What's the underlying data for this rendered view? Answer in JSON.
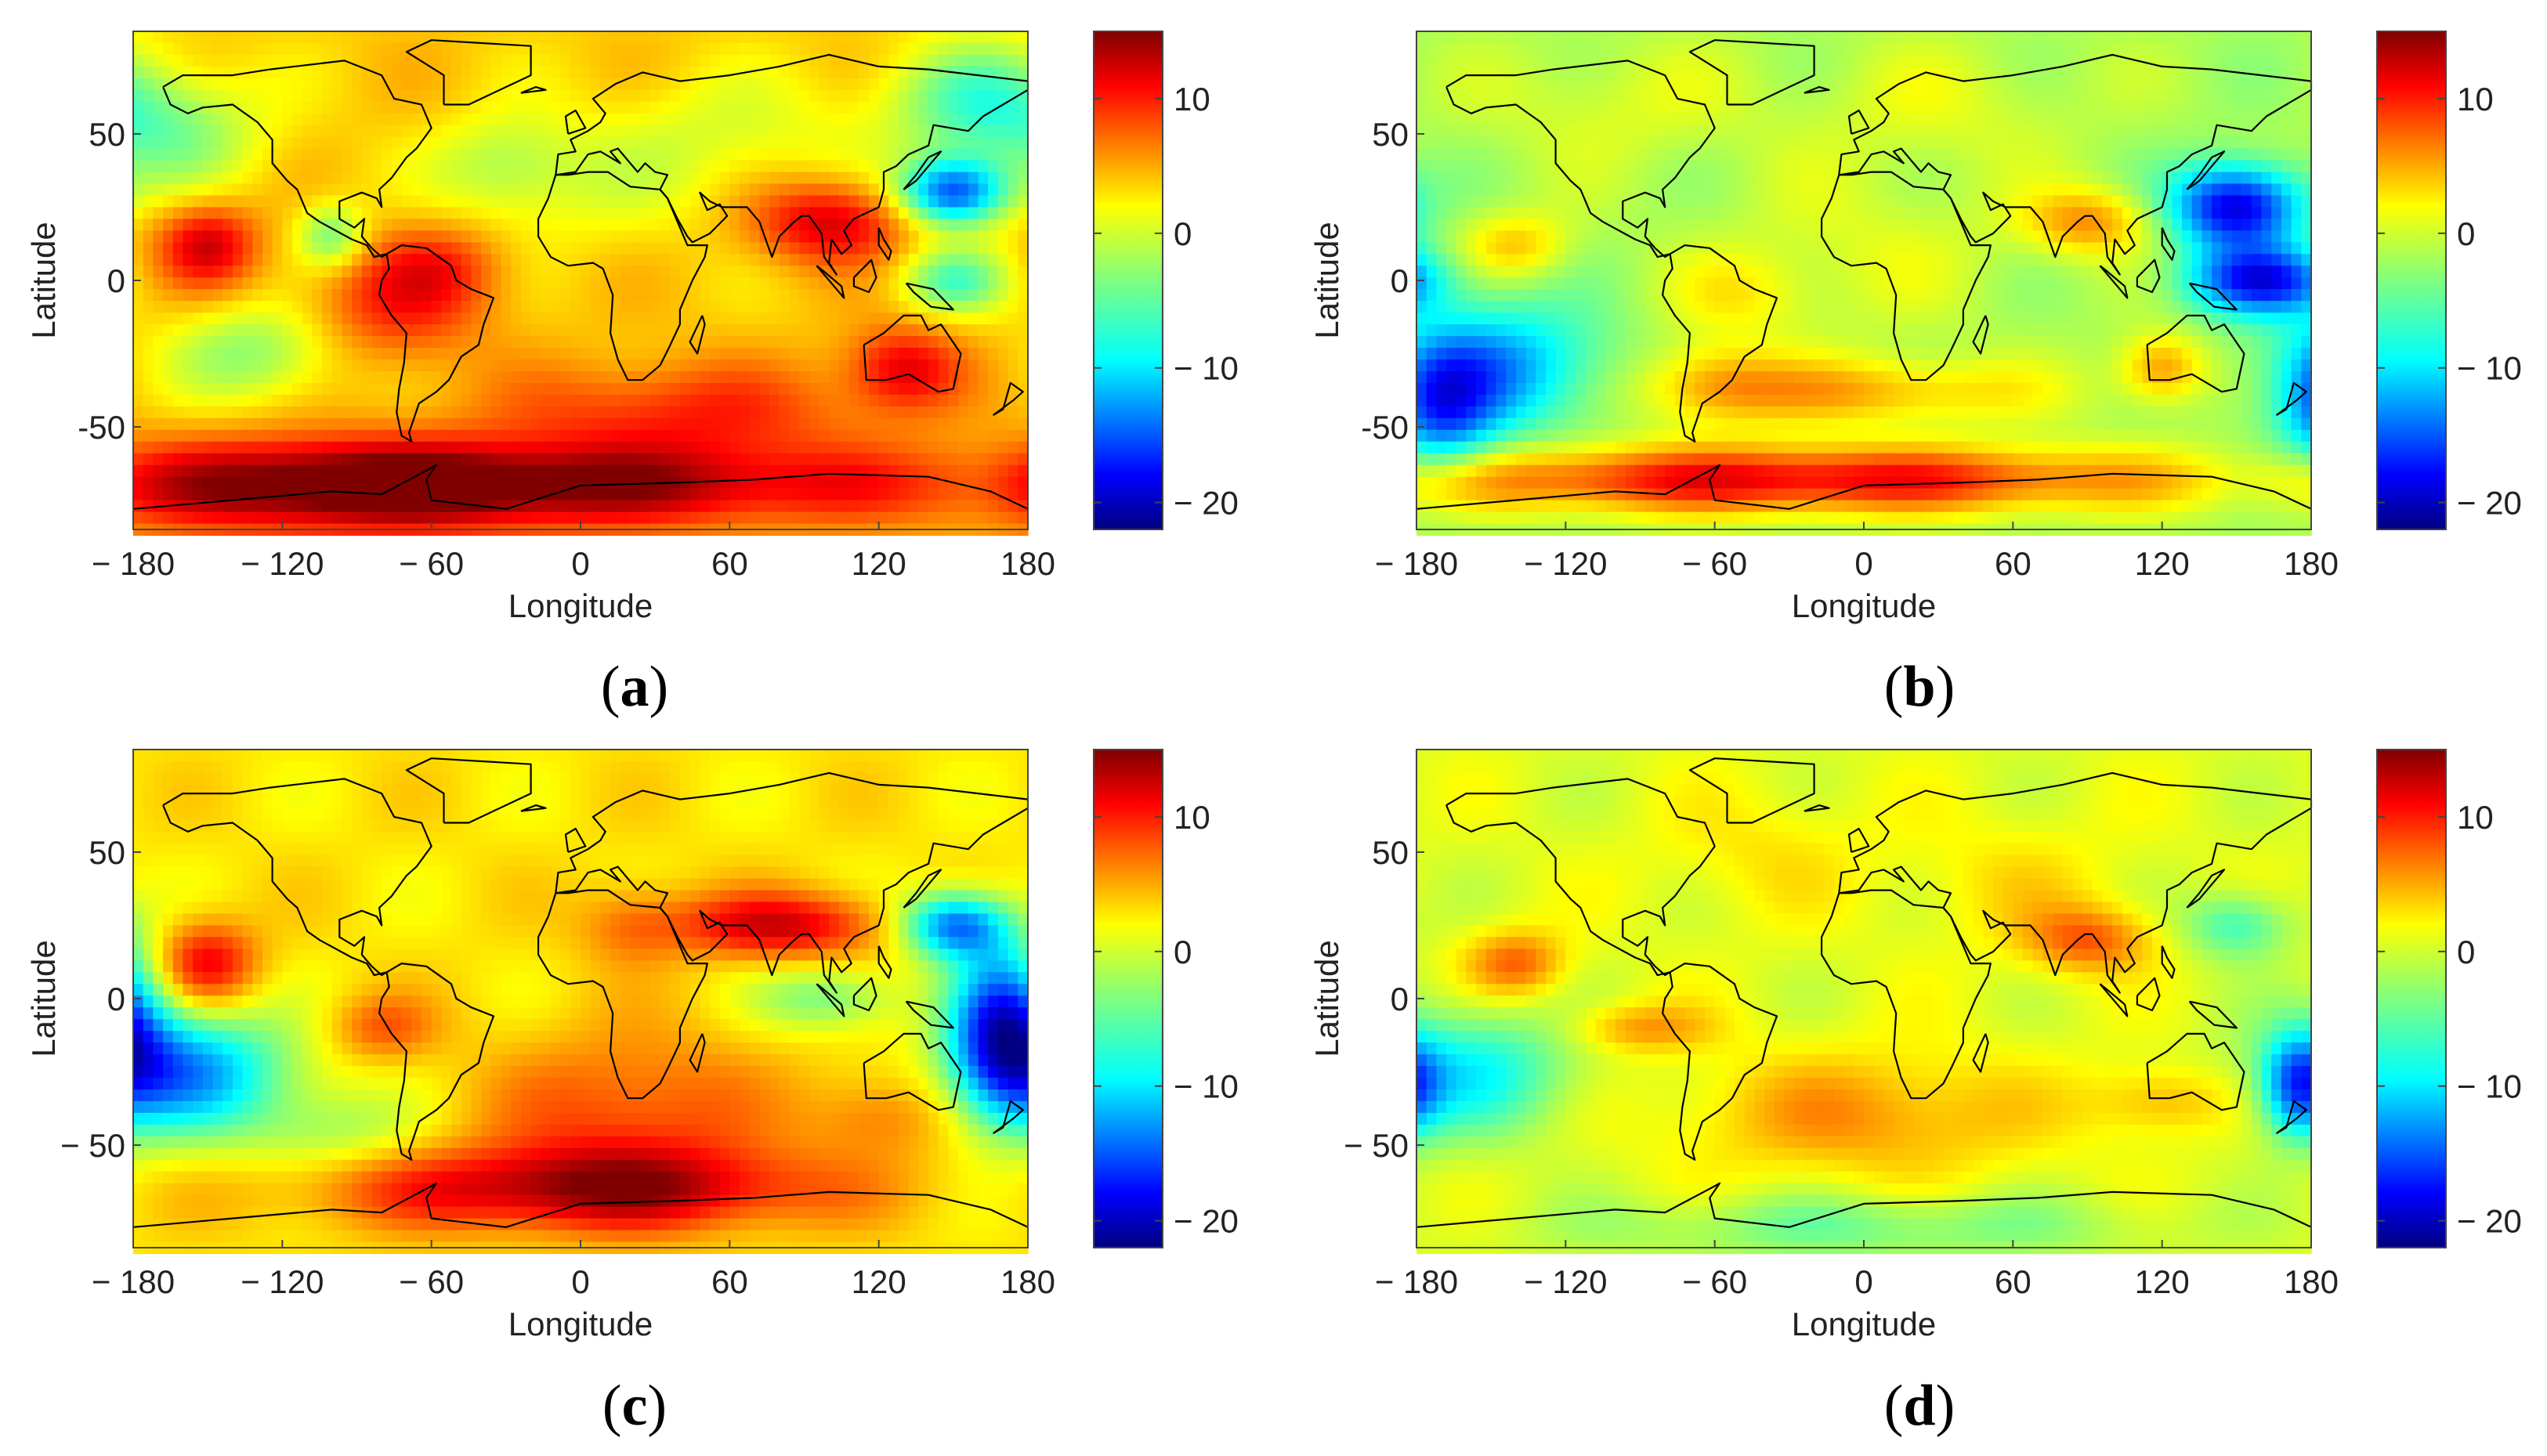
{
  "figure": {
    "colormap": "jet",
    "colorbar": {
      "range": [
        -22,
        15
      ],
      "ticks": [
        10,
        0,
        -10,
        -20
      ],
      "tick_labels": [
        "10",
        "0",
        "− 10",
        "− 20"
      ]
    },
    "x_ticks": [
      -180,
      -120,
      -60,
      0,
      60,
      120,
      180
    ],
    "x_tick_labels": [
      "− 180",
      "− 120",
      "− 60",
      "0",
      "60",
      "120",
      "180"
    ],
    "y_ticks": [
      50,
      0,
      -50
    ],
    "xlabel": "Longitude",
    "ylabel": "Latitude",
    "lon_range": [
      -180,
      180
    ],
    "lat_range": [
      -85,
      85
    ]
  },
  "panels": [
    {
      "id": "a",
      "caption_open": "(",
      "caption_letter": "a",
      "caption_close": ")",
      "y_tick_labels": [
        "50",
        "0",
        "-50"
      ],
      "base_value": 3,
      "anomalies": [
        {
          "lon": -150,
          "lat": 12,
          "value": 9,
          "rlon": 14,
          "rlat": 10
        },
        {
          "lon": -75,
          "lat": -8,
          "value": 6,
          "rlon": 25,
          "rlat": 15
        },
        {
          "lon": -55,
          "lat": 5,
          "value": 4,
          "rlon": 18,
          "rlat": 10
        },
        {
          "lon": -130,
          "lat": -25,
          "value": -6,
          "rlon": 25,
          "rlat": 12
        },
        {
          "lon": -160,
          "lat": 50,
          "value": -5,
          "rlon": 25,
          "rlat": 15
        },
        {
          "lon": -100,
          "lat": 15,
          "value": -7,
          "rlon": 10,
          "rlat": 8
        },
        {
          "lon": 100,
          "lat": 20,
          "value": 9,
          "rlon": 22,
          "rlat": 10
        },
        {
          "lon": 130,
          "lat": -30,
          "value": 8,
          "rlon": 16,
          "rlat": 10
        },
        {
          "lon": 150,
          "lat": 30,
          "value": -17,
          "rlon": 15,
          "rlat": 8
        },
        {
          "lon": 160,
          "lat": 60,
          "value": -8,
          "rlon": 25,
          "rlat": 15
        },
        {
          "lon": 150,
          "lat": 0,
          "value": -8,
          "rlon": 15,
          "rlat": 8
        },
        {
          "lon": 40,
          "lat": -45,
          "value": 6,
          "rlon": 50,
          "rlat": 12
        },
        {
          "lon": -20,
          "lat": -70,
          "value": 11,
          "rlon": 120,
          "rlat": 10
        },
        {
          "lon": -100,
          "lat": -70,
          "value": 7,
          "rlon": 60,
          "rlat": 12
        },
        {
          "lon": 0,
          "lat": 30,
          "value": -2,
          "rlon": 40,
          "rlat": 15
        },
        {
          "lon": -30,
          "lat": 40,
          "value": -4,
          "rlon": 20,
          "rlat": 12
        },
        {
          "lon": 60,
          "lat": 50,
          "value": -3,
          "rlon": 40,
          "rlat": 15
        }
      ]
    },
    {
      "id": "b",
      "caption_open": "(",
      "caption_letter": "b",
      "caption_close": ")",
      "y_tick_labels": [
        "50",
        "0",
        "-50"
      ],
      "base_value": -2,
      "anomalies": [
        {
          "lon": -140,
          "lat": 12,
          "value": 5,
          "rlon": 15,
          "rlat": 8
        },
        {
          "lon": -150,
          "lat": -30,
          "value": -10,
          "rlon": 30,
          "rlat": 15
        },
        {
          "lon": -170,
          "lat": -45,
          "value": -10,
          "rlon": 15,
          "rlat": 15
        },
        {
          "lon": -50,
          "lat": -5,
          "value": 3,
          "rlon": 20,
          "rlat": 10
        },
        {
          "lon": -60,
          "lat": -35,
          "value": 5,
          "rlon": 20,
          "rlat": 10
        },
        {
          "lon": 90,
          "lat": 20,
          "value": 7,
          "rlon": 18,
          "rlat": 8
        },
        {
          "lon": 150,
          "lat": 25,
          "value": -17,
          "rlon": 18,
          "rlat": 10
        },
        {
          "lon": 160,
          "lat": 0,
          "value": -15,
          "rlon": 20,
          "rlat": 8
        },
        {
          "lon": 120,
          "lat": -30,
          "value": 7,
          "rlon": 12,
          "rlat": 8
        },
        {
          "lon": 0,
          "lat": -38,
          "value": 6,
          "rlon": 50,
          "rlat": 8
        },
        {
          "lon": -30,
          "lat": -68,
          "value": 13,
          "rlon": 110,
          "rlat": 8
        },
        {
          "lon": 0,
          "lat": 10,
          "value": 2,
          "rlon": 40,
          "rlat": 20
        },
        {
          "lon": -100,
          "lat": 60,
          "value": 2,
          "rlon": 40,
          "rlat": 15
        },
        {
          "lon": 30,
          "lat": 60,
          "value": 2,
          "rlon": 40,
          "rlat": 15
        }
      ]
    },
    {
      "id": "c",
      "caption_open": "(",
      "caption_letter": "c",
      "caption_close": ")",
      "y_tick_labels": [
        "50",
        "0",
        "− 50"
      ],
      "base_value": 2,
      "anomalies": [
        {
          "lon": -150,
          "lat": 12,
          "value": 9,
          "rlon": 14,
          "rlat": 10
        },
        {
          "lon": -160,
          "lat": -25,
          "value": -14,
          "rlon": 30,
          "rlat": 15
        },
        {
          "lon": -100,
          "lat": -45,
          "value": -4,
          "rlon": 25,
          "rlat": 10
        },
        {
          "lon": -80,
          "lat": -10,
          "value": 5,
          "rlon": 15,
          "rlat": 8
        },
        {
          "lon": 80,
          "lat": 25,
          "value": 10,
          "rlon": 30,
          "rlat": 8
        },
        {
          "lon": 20,
          "lat": 25,
          "value": 4,
          "rlon": 15,
          "rlat": 10
        },
        {
          "lon": 150,
          "lat": 25,
          "value": -15,
          "rlon": 15,
          "rlat": 8
        },
        {
          "lon": 170,
          "lat": -10,
          "value": -18,
          "rlon": 15,
          "rlat": 20
        },
        {
          "lon": 100,
          "lat": 0,
          "value": -6,
          "rlon": 20,
          "rlat": 8
        },
        {
          "lon": 20,
          "lat": -40,
          "value": 6,
          "rlon": 40,
          "rlat": 20
        },
        {
          "lon": 0,
          "lat": -65,
          "value": 11,
          "rlon": 70,
          "rlat": 10
        },
        {
          "lon": 120,
          "lat": -40,
          "value": 4,
          "rlon": 20,
          "rlat": 10
        }
      ]
    },
    {
      "id": "d",
      "caption_open": "(",
      "caption_letter": "d",
      "caption_close": ")",
      "y_tick_labels": [
        "50",
        "0",
        "− 50"
      ],
      "base_value": 0,
      "anomalies": [
        {
          "lon": -140,
          "lat": 12,
          "value": 7,
          "rlon": 14,
          "rlat": 8
        },
        {
          "lon": -160,
          "lat": -25,
          "value": -8,
          "rlon": 30,
          "rlat": 15
        },
        {
          "lon": -90,
          "lat": -10,
          "value": 5,
          "rlon": 20,
          "rlat": 6
        },
        {
          "lon": 90,
          "lat": 20,
          "value": 7,
          "rlon": 18,
          "rlat": 8
        },
        {
          "lon": 150,
          "lat": 25,
          "value": -6,
          "rlon": 15,
          "rlat": 8
        },
        {
          "lon": 175,
          "lat": -30,
          "value": -12,
          "rlon": 10,
          "rlat": 12
        },
        {
          "lon": 0,
          "lat": -40,
          "value": 5,
          "rlon": 50,
          "rlat": 15
        },
        {
          "lon": 120,
          "lat": -35,
          "value": 4,
          "rlon": 20,
          "rlat": 8
        },
        {
          "lon": 0,
          "lat": -78,
          "value": -4,
          "rlon": 80,
          "rlat": 8
        },
        {
          "lon": -40,
          "lat": 50,
          "value": 2,
          "rlon": 30,
          "rlat": 15
        },
        {
          "lon": 60,
          "lat": 40,
          "value": 2,
          "rlon": 30,
          "rlat": 15
        }
      ]
    }
  ]
}
